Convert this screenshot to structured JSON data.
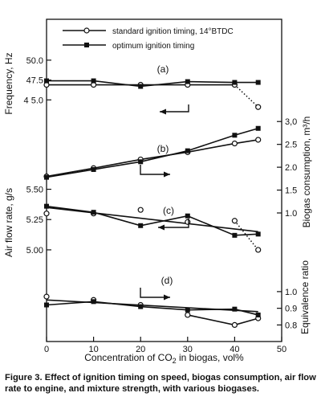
{
  "chart_data": {
    "type": "line",
    "legend": {
      "placement": "top",
      "entries": [
        {
          "label": "standard ignition timing, 14°BTDC",
          "marker": "open-circle"
        },
        {
          "label": "optimum ignition timing",
          "marker": "filled-square"
        }
      ]
    },
    "x": {
      "label_prefix": "Concentration of CO",
      "label_sub": "2",
      "label_suffix": " in biogas, vol%",
      "ticks": [
        "0",
        "10",
        "20",
        "30",
        "40",
        "50"
      ],
      "range": [
        0,
        50
      ]
    },
    "panels": [
      {
        "id": "a",
        "label": "(a)",
        "y_axis": "left",
        "ylabel": "Frequency, Hz",
        "ylim": [
          42.0,
          51.3
        ],
        "ticks": [
          {
            "value": 50.0,
            "label": "50.0"
          },
          {
            "value": 47.5,
            "label": "47.5"
          },
          {
            "value": 45.0,
            "label": "4 5.0"
          }
        ],
        "x": [
          0,
          10,
          20,
          30,
          40,
          45
        ],
        "series": [
          {
            "marker": "open-circle",
            "values": [
              46.9,
              46.9,
              46.9,
              46.9,
              46.9,
              44.1
            ],
            "dotted_last": true
          },
          {
            "marker": "filled-square",
            "values": [
              47.4,
              47.4,
              46.7,
              47.3,
              47.2,
              47.2
            ]
          }
        ]
      },
      {
        "id": "b",
        "label": "(b)",
        "y_axis": "right",
        "ylabel": "Biogas consumption, m³/h",
        "ylim": [
          1.0,
          3.25
        ],
        "ticks": [
          {
            "value": 3.0,
            "label": "3,0"
          },
          {
            "value": 2.5,
            "label": "2.5"
          },
          {
            "value": 2.0,
            "label": "2.0"
          },
          {
            "value": 1.5,
            "label": "1.5"
          },
          {
            "value": 1.0,
            "label": "1.0"
          }
        ],
        "x": [
          0,
          10,
          20,
          30,
          40,
          45
        ],
        "series": [
          {
            "marker": "open-circle",
            "values": [
              1.8,
              1.98,
              2.17,
              2.33,
              2.52,
              2.6
            ]
          },
          {
            "marker": "filled-square",
            "values": [
              1.78,
              1.95,
              2.12,
              2.36,
              2.7,
              2.85
            ]
          }
        ]
      },
      {
        "id": "c",
        "label": "(c)",
        "y_axis": "left",
        "ylabel": "Air flow rate, g/s",
        "ylim": [
          4.9,
          5.55
        ],
        "ticks": [
          {
            "value": 5.5,
            "label": "5.50"
          },
          {
            "value": 5.25,
            "label": "5.25"
          },
          {
            "value": 5.0,
            "label": "5.00"
          }
        ],
        "x": [
          0,
          10,
          20,
          30,
          40,
          45
        ],
        "series": [
          {
            "marker": "open-circle",
            "values": [
              5.3,
              5.3,
              5.33,
              5.23,
              5.24,
              5.0
            ],
            "dotted_last": true
          },
          {
            "marker": "filled-square",
            "values": [
              5.36,
              5.31,
              5.2,
              5.28,
              5.12,
              5.13
            ]
          }
        ],
        "trend_line": {
          "x": [
            0,
            45
          ],
          "values": [
            5.35,
            5.15
          ]
        }
      },
      {
        "id": "d",
        "label": "(d)",
        "y_axis": "right",
        "ylabel": "Equivalence ratio",
        "ylim": [
          0.72,
          1.25
        ],
        "ticks": [
          {
            "value": 1.0,
            "label": "1.0"
          },
          {
            "value": 0.9,
            "label": "0.9"
          },
          {
            "value": 0.8,
            "label": "0.8"
          }
        ],
        "x": [
          0,
          10,
          20,
          30,
          40,
          45
        ],
        "series": [
          {
            "marker": "open-circle",
            "values": [
              0.97,
              0.95,
              0.92,
              0.86,
              0.8,
              0.84
            ]
          },
          {
            "marker": "filled-square",
            "values": [
              0.92,
              0.94,
              0.91,
              0.89,
              0.895,
              0.86
            ]
          }
        ],
        "trend_line": {
          "x": [
            0,
            45
          ],
          "values": [
            0.95,
            0.88
          ]
        }
      }
    ]
  },
  "caption": {
    "figure_label": "Figure 3.",
    "text": " Effect of ignition timing on speed, biogas consumption, air flow rate to engine, and mixture strength, with various biogases."
  }
}
